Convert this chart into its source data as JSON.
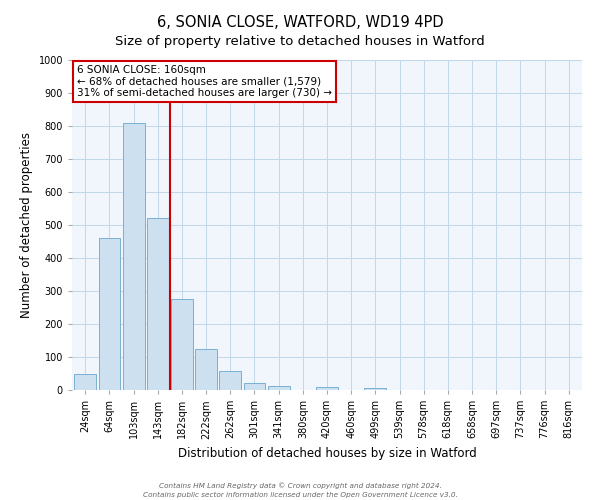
{
  "title": "6, SONIA CLOSE, WATFORD, WD19 4PD",
  "subtitle": "Size of property relative to detached houses in Watford",
  "xlabel": "Distribution of detached houses by size in Watford",
  "ylabel": "Number of detached properties",
  "bar_labels": [
    "24sqm",
    "64sqm",
    "103sqm",
    "143sqm",
    "182sqm",
    "222sqm",
    "262sqm",
    "301sqm",
    "341sqm",
    "380sqm",
    "420sqm",
    "460sqm",
    "499sqm",
    "539sqm",
    "578sqm",
    "618sqm",
    "658sqm",
    "697sqm",
    "737sqm",
    "776sqm",
    "816sqm"
  ],
  "bar_values": [
    47,
    460,
    810,
    520,
    275,
    125,
    58,
    22,
    12,
    0,
    8,
    0,
    5,
    0,
    0,
    0,
    0,
    0,
    0,
    0,
    0
  ],
  "bar_color": "#cce0ef",
  "bar_edge_color": "#7ab0d4",
  "vline_x": 3.5,
  "vline_color": "#cc0000",
  "ylim": [
    0,
    1000
  ],
  "yticks": [
    0,
    100,
    200,
    300,
    400,
    500,
    600,
    700,
    800,
    900,
    1000
  ],
  "annotation_title": "6 SONIA CLOSE: 160sqm",
  "annotation_line1": "← 68% of detached houses are smaller (1,579)",
  "annotation_line2": "31% of semi-detached houses are larger (730) →",
  "annotation_box_color": "#ffffff",
  "annotation_box_edge": "#cc0000",
  "footer1": "Contains HM Land Registry data © Crown copyright and database right 2024.",
  "footer2": "Contains public sector information licensed under the Open Government Licence v3.0.",
  "bg_color": "#ffffff",
  "plot_bg_color": "#f0f6fb",
  "grid_color": "#c0d8eb",
  "title_fontsize": 10.5,
  "axis_label_fontsize": 8.5,
  "tick_fontsize": 7
}
